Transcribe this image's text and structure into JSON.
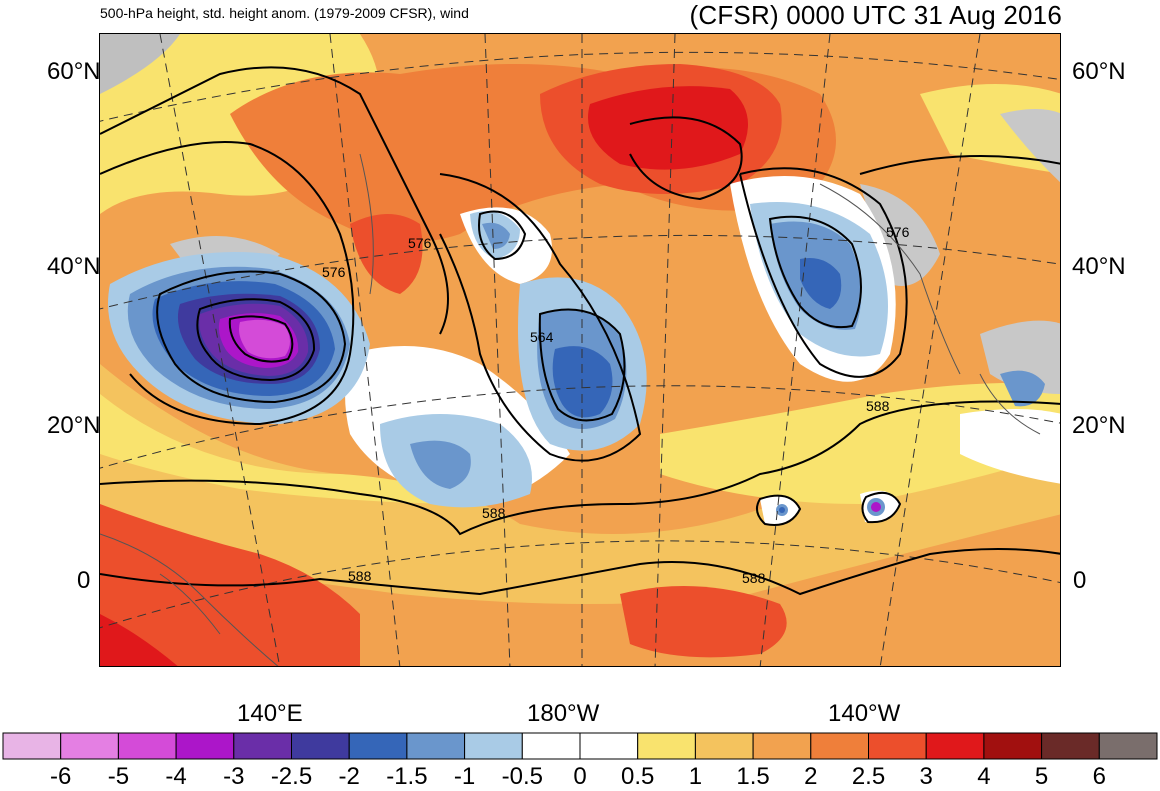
{
  "header": {
    "subtitle": "500-hPa height, std. height anom. (1979-2009 CFSR), wind",
    "title": "(CFSR) 0000 UTC 31 Aug 2016"
  },
  "map": {
    "projection": "conic",
    "region": "North Pacific",
    "lat_labels_left": [
      "60°N",
      "40°N",
      "20°N",
      "0"
    ],
    "lat_labels_right": [
      "60°N",
      "40°N",
      "20°N",
      "0"
    ],
    "lon_labels": [
      "140°E",
      "180°W",
      "140°W"
    ],
    "contour_labels": [
      "576",
      "576",
      "576",
      "564",
      "588",
      "588",
      "588",
      "588"
    ]
  },
  "colorbar": {
    "labels": [
      "-6",
      "-5",
      "-4",
      "-3",
      "-2.5",
      "-2",
      "-1.5",
      "-1",
      "-0.5",
      "0",
      "0.5",
      "1",
      "1.5",
      "2",
      "2.5",
      "3",
      "4",
      "5",
      "6"
    ],
    "colors": [
      "#e8b4e6",
      "#e47fe3",
      "#d44bd8",
      "#ac16c9",
      "#6a2ea8",
      "#3f3a9e",
      "#3566b8",
      "#6a96cc",
      "#a9cbe6",
      "#ffffff",
      "#ffffff",
      "#f9e36e",
      "#f4c35e",
      "#f2a24f",
      "#ef7f3a",
      "#ec4f2c",
      "#e0181b",
      "#a1100f",
      "#6a2a28",
      "#7a6e6c"
    ]
  }
}
